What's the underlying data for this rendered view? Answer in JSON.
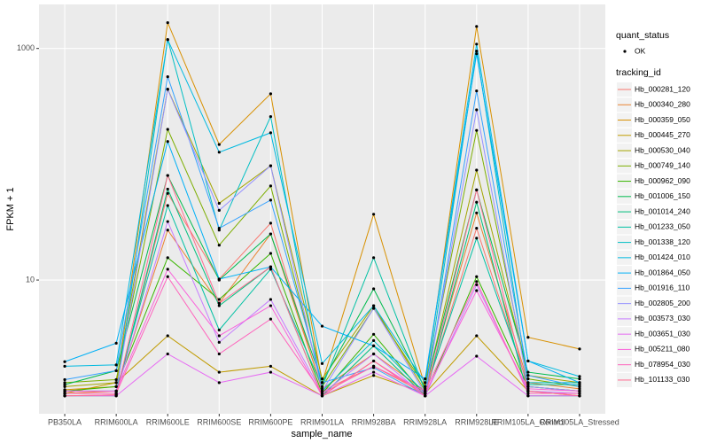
{
  "chart_data": {
    "type": "line",
    "x_label": "sample_name",
    "y_label": "FPKM + 1",
    "categories": [
      "PB350LA",
      "RRIM600LA",
      "RRIM600LE",
      "RRIM600SE",
      "RRIM600PE",
      "RRIM901LA",
      "RRIM928BA",
      "RRIM928LA",
      "RRIM928LE",
      "RRIM105LA_Control",
      "RRIM105LA_Stressed"
    ],
    "log_y": true,
    "ylim": [
      0.7,
      2400
    ],
    "yticks": [
      10,
      1000
    ],
    "grid": true,
    "point_legend": {
      "title": "quant_status",
      "labels": [
        "OK"
      ],
      "color": "#000000"
    },
    "legend_title": "tracking_id",
    "legend_position": "right",
    "series": [
      {
        "name": "Hb_000281_120",
        "color": "#F8766D",
        "values": [
          1.0,
          1.02,
          56,
          10.2,
          31,
          1.1,
          1.8,
          1.05,
          28,
          1.2,
          1.1
        ]
      },
      {
        "name": "Hb_000340_280",
        "color": "#EA8331",
        "values": [
          1.05,
          1.1,
          27,
          6.3,
          25,
          1.15,
          2.3,
          1.1,
          38,
          1.3,
          1.15
        ]
      },
      {
        "name": "Hb_000359_050",
        "color": "#D89000",
        "values": [
          1.13,
          1.2,
          1670,
          148,
          406,
          1.3,
          37,
          1.2,
          1550,
          3.2,
          2.54
        ]
      },
      {
        "name": "Hb_000445_270",
        "color": "#C09B00",
        "values": [
          1.05,
          1.3,
          3.3,
          1.6,
          1.8,
          1.0,
          1.5,
          1.05,
          3.3,
          1.1,
          1.0
        ]
      },
      {
        "name": "Hb_000530_040",
        "color": "#A3A500",
        "values": [
          1.2,
          1.3,
          445,
          46,
          97,
          1.4,
          6.0,
          1.1,
          89,
          1.5,
          1.3
        ]
      },
      {
        "name": "Hb_000749_140",
        "color": "#7CAE00",
        "values": [
          1.3,
          1.38,
          200,
          20,
          65,
          1.2,
          5.7,
          1.2,
          196,
          1.4,
          1.2
        ]
      },
      {
        "name": "Hb_000962_090",
        "color": "#39B600",
        "values": [
          1.1,
          1.2,
          15.6,
          6.8,
          17,
          1.05,
          3.4,
          1.0,
          10.7,
          1.2,
          1.1
        ]
      },
      {
        "name": "Hb_001006_150",
        "color": "#00BB4E",
        "values": [
          1.25,
          1.65,
          80,
          10,
          25,
          1.3,
          8.4,
          1.15,
          60,
          1.6,
          1.4
        ]
      },
      {
        "name": "Hb_001014_240",
        "color": "#00BF7D",
        "values": [
          1.0,
          1.0,
          61,
          6.0,
          13,
          1.0,
          2.7,
          1.0,
          47,
          1.0,
          1.0
        ]
      },
      {
        "name": "Hb_001233_050",
        "color": "#00C1A3",
        "values": [
          1.1,
          1.1,
          44,
          3.7,
          12.4,
          1.2,
          15.6,
          1.1,
          23,
          1.25,
          1.25
        ]
      },
      {
        "name": "Hb_001338_120",
        "color": "#00BFC4",
        "values": [
          1.05,
          1.05,
          1195,
          27,
          258,
          1.1,
          3.0,
          1.05,
          950,
          1.3,
          1.3
        ]
      },
      {
        "name": "Hb_001424_010",
        "color": "#00BAE0",
        "values": [
          1.8,
          1.85,
          1190,
          127,
          187,
          1.9,
          6.0,
          1.3,
          1090,
          2.0,
          1.47
        ]
      },
      {
        "name": "Hb_001864_050",
        "color": "#00B0F6",
        "values": [
          1.97,
          2.85,
          157,
          10.2,
          13,
          4.0,
          2.7,
          1.4,
          900,
          2.0,
          1.3
        ]
      },
      {
        "name": "Hb_001916_110",
        "color": "#35A2FF",
        "values": [
          1.38,
          1.65,
          570,
          28,
          49,
          1.3,
          1.75,
          1.0,
          430,
          1.5,
          1.2
        ]
      },
      {
        "name": "Hb_002805_200",
        "color": "#9590FF",
        "values": [
          1.1,
          1.1,
          443,
          40,
          97,
          1.1,
          5.7,
          1.05,
          295,
          1.2,
          1.1
        ]
      },
      {
        "name": "Hb_003573_030",
        "color": "#C77CFF",
        "values": [
          1.05,
          1.05,
          32,
          2.9,
          6.8,
          1.05,
          2.3,
          1.0,
          9.1,
          1.1,
          1.05
        ]
      },
      {
        "name": "Hb_003651_030",
        "color": "#E76BF3",
        "values": [
          1.0,
          1.0,
          2.3,
          1.3,
          1.6,
          1.0,
          1.6,
          1.0,
          2.2,
          1.0,
          1.0
        ]
      },
      {
        "name": "Hb_005211_080",
        "color": "#FA62DB",
        "values": [
          1.1,
          1.1,
          12.4,
          3.3,
          6.0,
          1.0,
          2.0,
          1.05,
          8.1,
          1.15,
          1.1
        ]
      },
      {
        "name": "Hb_078954_030",
        "color": "#FF62BC",
        "values": [
          1.05,
          1.05,
          10.7,
          2.3,
          4.6,
          1.05,
          1.8,
          1.1,
          9.7,
          1.05,
          1.05
        ]
      },
      {
        "name": "Hb_101133_030",
        "color": "#FF6C91",
        "values": [
          1.0,
          1.02,
          80,
          6.3,
          13,
          1.0,
          2.0,
          1.0,
          60,
          1.1,
          1.0
        ]
      }
    ]
  }
}
